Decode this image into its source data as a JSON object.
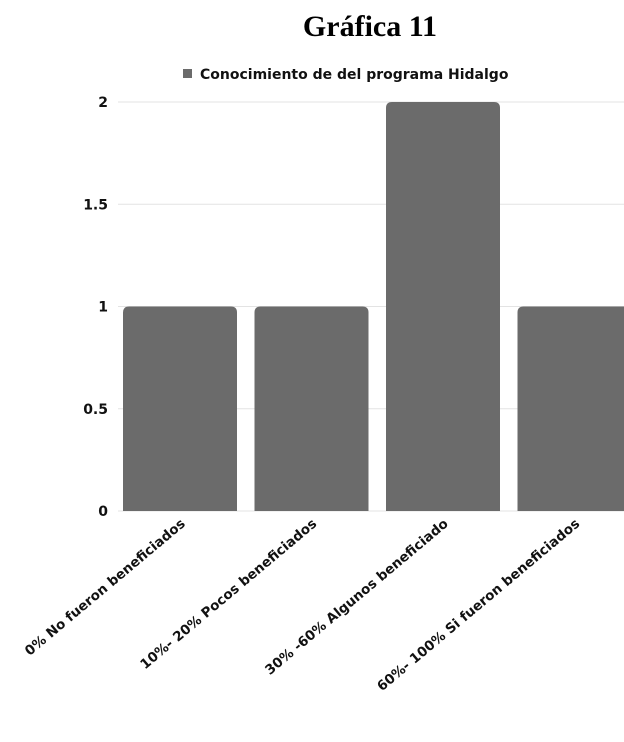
{
  "chart_data": {
    "type": "bar",
    "title": "Gráfica 11",
    "categories": [
      "0% No fueron beneficiados",
      "10%- 20% Pocos beneficiados",
      "30% -60% Algunos beneficiado",
      "60%- 100% Si fueron beneficiados"
    ],
    "series": [
      {
        "name": "Conocimiento de del programa Hidalgo",
        "values": [
          1,
          1,
          2,
          1
        ]
      }
    ],
    "y_ticks": [
      "0",
      "0.5",
      "1",
      "1.5",
      "2"
    ],
    "ylim": [
      0,
      2
    ],
    "grid": true,
    "legend_position": "top",
    "bar_color": "#6b6b6b",
    "grid_color": "#e3e3e3"
  }
}
